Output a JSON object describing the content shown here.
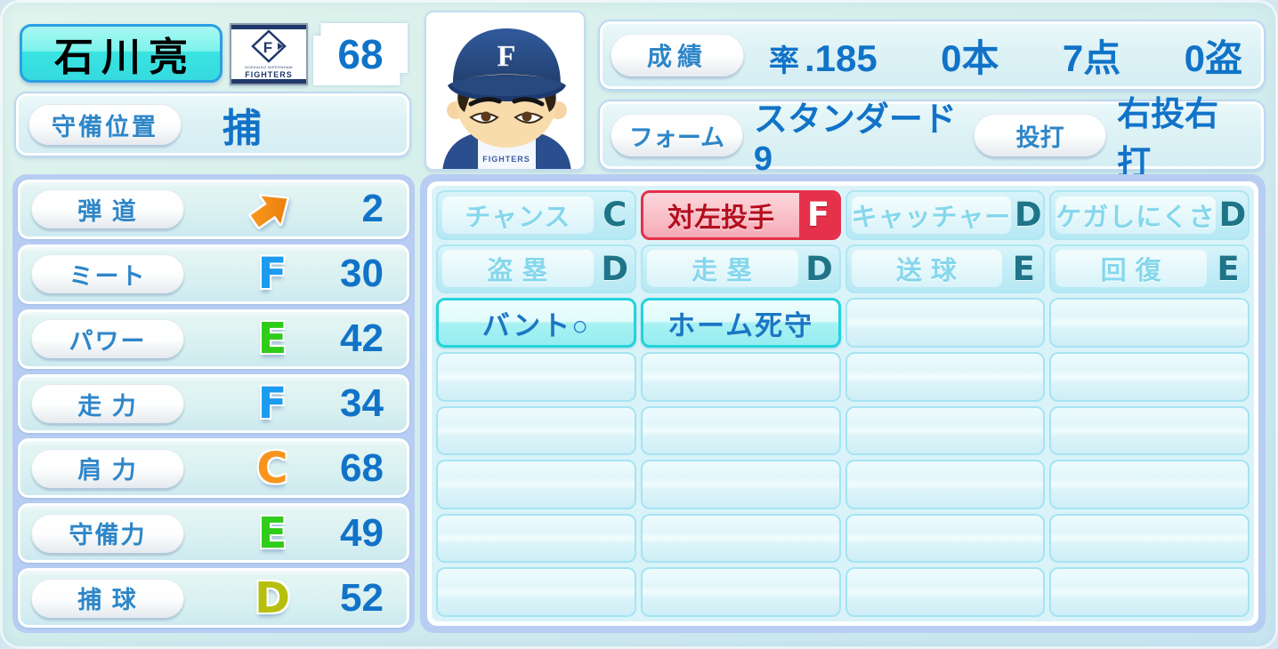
{
  "colors": {
    "accent_blue": "#1173c8",
    "label_blue": "#2e86c8",
    "badge_cyan": "#3ae4e2",
    "badge_border": "#2aa0e4",
    "panel_rim": "#b7cdf2",
    "red_accent": "#e6314a",
    "cyan_highlight": "#23d3dd",
    "grade_blue": "#1b9cf0",
    "grade_green": "#2fcc1a",
    "grade_orange": "#f6941c",
    "grade_olive": "#b6bf0e",
    "ability_teal": "#1f7488"
  },
  "player": {
    "name": "石川亮",
    "number": "68"
  },
  "team": {
    "cap_letter": "F",
    "logo_diamond_letter": "F",
    "logo_sub": "HOKKAIDO NIPPONHAM",
    "logo_name": "FIGHTERS",
    "jersey_text": "FIGHTERS"
  },
  "position": {
    "label": "守備位置",
    "value": "捕"
  },
  "record": {
    "label": "成績",
    "avg_label": "率",
    "avg": ".185",
    "hr": "0本",
    "rbi": "7点",
    "sb": "0盗"
  },
  "form": {
    "label": "フォーム",
    "value": "スタンダード9",
    "throw_label": "投打",
    "throw_value": "右投右打"
  },
  "stats": {
    "rows": [
      {
        "label": "弾 道",
        "icon": "trajectory-arrow",
        "value": "2"
      },
      {
        "label": "ミート",
        "grade": "F",
        "grade_class": "blue",
        "value": "30"
      },
      {
        "label": "パワー",
        "grade": "E",
        "grade_class": "green",
        "value": "42"
      },
      {
        "label": "走 力",
        "grade": "F",
        "grade_class": "blue",
        "value": "34"
      },
      {
        "label": "肩 力",
        "grade": "C",
        "grade_class": "orange",
        "value": "68"
      },
      {
        "label": "守備力",
        "grade": "E",
        "grade_class": "green",
        "value": "49"
      },
      {
        "label": "捕 球",
        "grade": "D",
        "grade_class": "olive",
        "value": "52"
      }
    ]
  },
  "abilities": {
    "rows": [
      [
        {
          "label": "チャンス",
          "grade": "C",
          "state": "muted"
        },
        {
          "label": "対左投手",
          "grade": "F",
          "state": "red"
        },
        {
          "label": "キャッチャー",
          "grade": "D",
          "state": "muted"
        },
        {
          "label": "ケガしにくさ",
          "grade": "D",
          "state": "muted"
        }
      ],
      [
        {
          "label": "盗 塁",
          "grade": "D",
          "state": "muted"
        },
        {
          "label": "走 塁",
          "grade": "D",
          "state": "muted"
        },
        {
          "label": "送 球",
          "grade": "E",
          "state": "muted"
        },
        {
          "label": "回 復",
          "grade": "E",
          "state": "muted"
        }
      ],
      [
        {
          "label": "バント○",
          "state": "cyan"
        },
        {
          "label": "ホーム死守",
          "state": "cyan"
        },
        {
          "state": "empty"
        },
        {
          "state": "empty"
        }
      ],
      [
        {
          "state": "empty"
        },
        {
          "state": "empty"
        },
        {
          "state": "empty"
        },
        {
          "state": "empty"
        }
      ],
      [
        {
          "state": "empty"
        },
        {
          "state": "empty"
        },
        {
          "state": "empty"
        },
        {
          "state": "empty"
        }
      ],
      [
        {
          "state": "empty"
        },
        {
          "state": "empty"
        },
        {
          "state": "empty"
        },
        {
          "state": "empty"
        }
      ],
      [
        {
          "state": "empty"
        },
        {
          "state": "empty"
        },
        {
          "state": "empty"
        },
        {
          "state": "empty"
        }
      ],
      [
        {
          "state": "empty"
        },
        {
          "state": "empty"
        },
        {
          "state": "empty"
        },
        {
          "state": "empty"
        }
      ]
    ]
  }
}
